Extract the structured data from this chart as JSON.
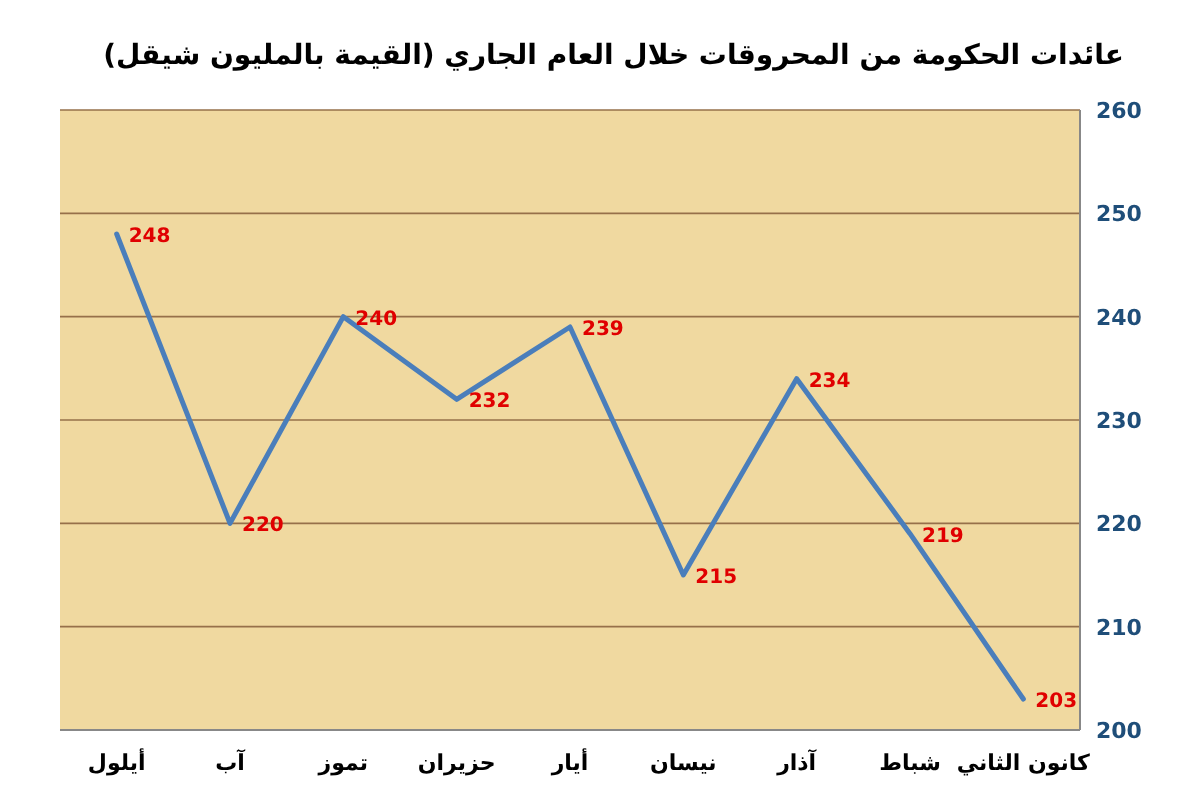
{
  "chart_data": {
    "type": "line",
    "title": "عائدات الحكومة من المحروقات خلال العام الجاري (القيمة بالمليون شيقل)",
    "categories": [
      "أيلول",
      "آب",
      "تموز",
      "حزيران",
      "أيار",
      "نيسان",
      "آذار",
      "شباط",
      "كانون الثاني"
    ],
    "values": [
      248,
      220,
      240,
      232,
      239,
      215,
      234,
      219,
      203
    ],
    "color": "#4a7ebb",
    "ylim": [
      200,
      260
    ],
    "yticks": [
      200,
      210,
      220,
      230,
      240,
      250,
      260
    ],
    "grid": "y",
    "marker": "none",
    "data_labels": true
  }
}
